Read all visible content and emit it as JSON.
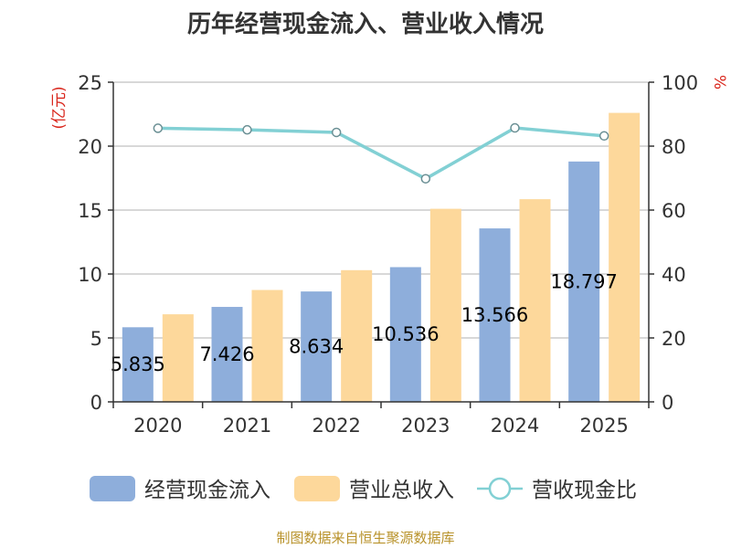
{
  "chart_data": {
    "type": "bar",
    "title": "历年经营现金流入、营业收入情况",
    "categories": [
      "2020",
      "2021",
      "2022",
      "2023",
      "2024",
      "2025"
    ],
    "series": [
      {
        "name": "经营现金流入",
        "kind": "bar",
        "axis": "left",
        "color": "#8eaedb",
        "values": [
          5.835,
          7.426,
          8.634,
          10.536,
          13.566,
          18.797
        ],
        "labels": [
          "5.835",
          "7.426",
          "8.634",
          "10.536",
          "13.566",
          "18.797"
        ]
      },
      {
        "name": "营业总收入",
        "kind": "bar",
        "axis": "left",
        "color": "#fdd89b",
        "values": [
          6.85,
          8.75,
          10.3,
          15.1,
          15.85,
          22.6
        ]
      },
      {
        "name": "营收现金比",
        "kind": "line",
        "axis": "right",
        "color": "#82d0d4",
        "values": [
          85.6,
          85.1,
          84.3,
          69.8,
          85.7,
          83.2
        ]
      }
    ],
    "yaxis_left": {
      "unit": "(亿元)",
      "range": [
        0,
        25
      ],
      "ticks": [
        0,
        5,
        10,
        15,
        20,
        25
      ]
    },
    "yaxis_right": {
      "unit": "%",
      "range": [
        0,
        100
      ],
      "ticks": [
        0,
        20,
        40,
        60,
        80,
        100
      ]
    },
    "grid": true,
    "legend": "bottom"
  },
  "source": "制图数据来自恒生聚源数据库"
}
